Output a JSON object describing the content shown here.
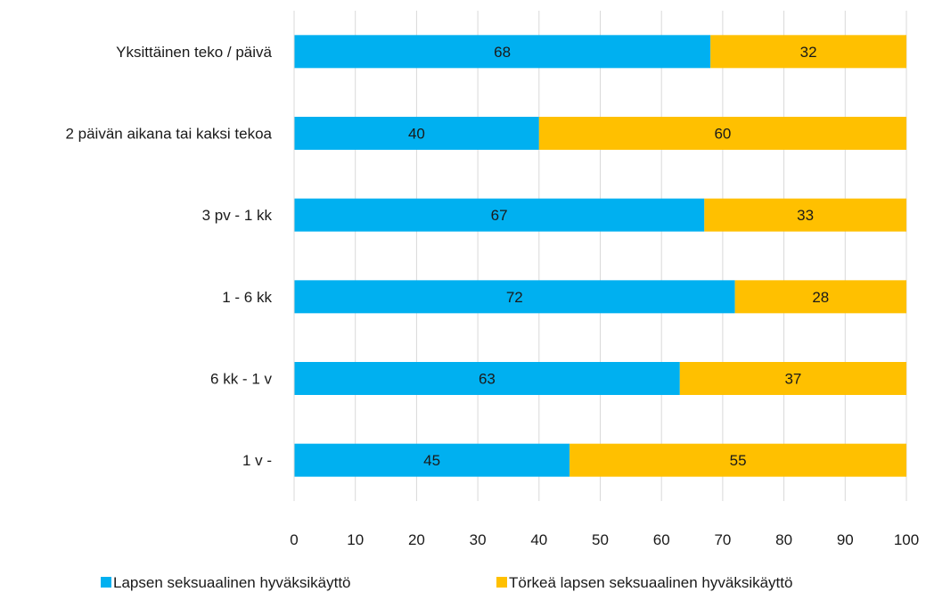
{
  "chart_data": {
    "type": "bar",
    "orientation": "horizontal",
    "stacked": true,
    "categories": [
      "Yksittäinen teko / päivä",
      "2 päivän aikana tai kaksi tekoa",
      "3 pv - 1 kk",
      "1 - 6 kk",
      "6 kk - 1 v",
      "1 v -"
    ],
    "series": [
      {
        "name": "Lapsen seksuaalinen hyväksikäyttö",
        "color": "#00b0f0",
        "values": [
          68,
          40,
          67,
          72,
          63,
          45
        ]
      },
      {
        "name": "Törkeä lapsen seksuaalinen hyväksikäyttö",
        "color": "#ffc000",
        "values": [
          32,
          60,
          33,
          28,
          37,
          55
        ]
      }
    ],
    "xlim": [
      0,
      100
    ],
    "xticks": [
      "0",
      "10",
      "20",
      "30",
      "40",
      "50",
      "60",
      "70",
      "80",
      "90",
      "100"
    ],
    "data_labels": true,
    "grid": "vertical",
    "legend_position": "bottom"
  }
}
